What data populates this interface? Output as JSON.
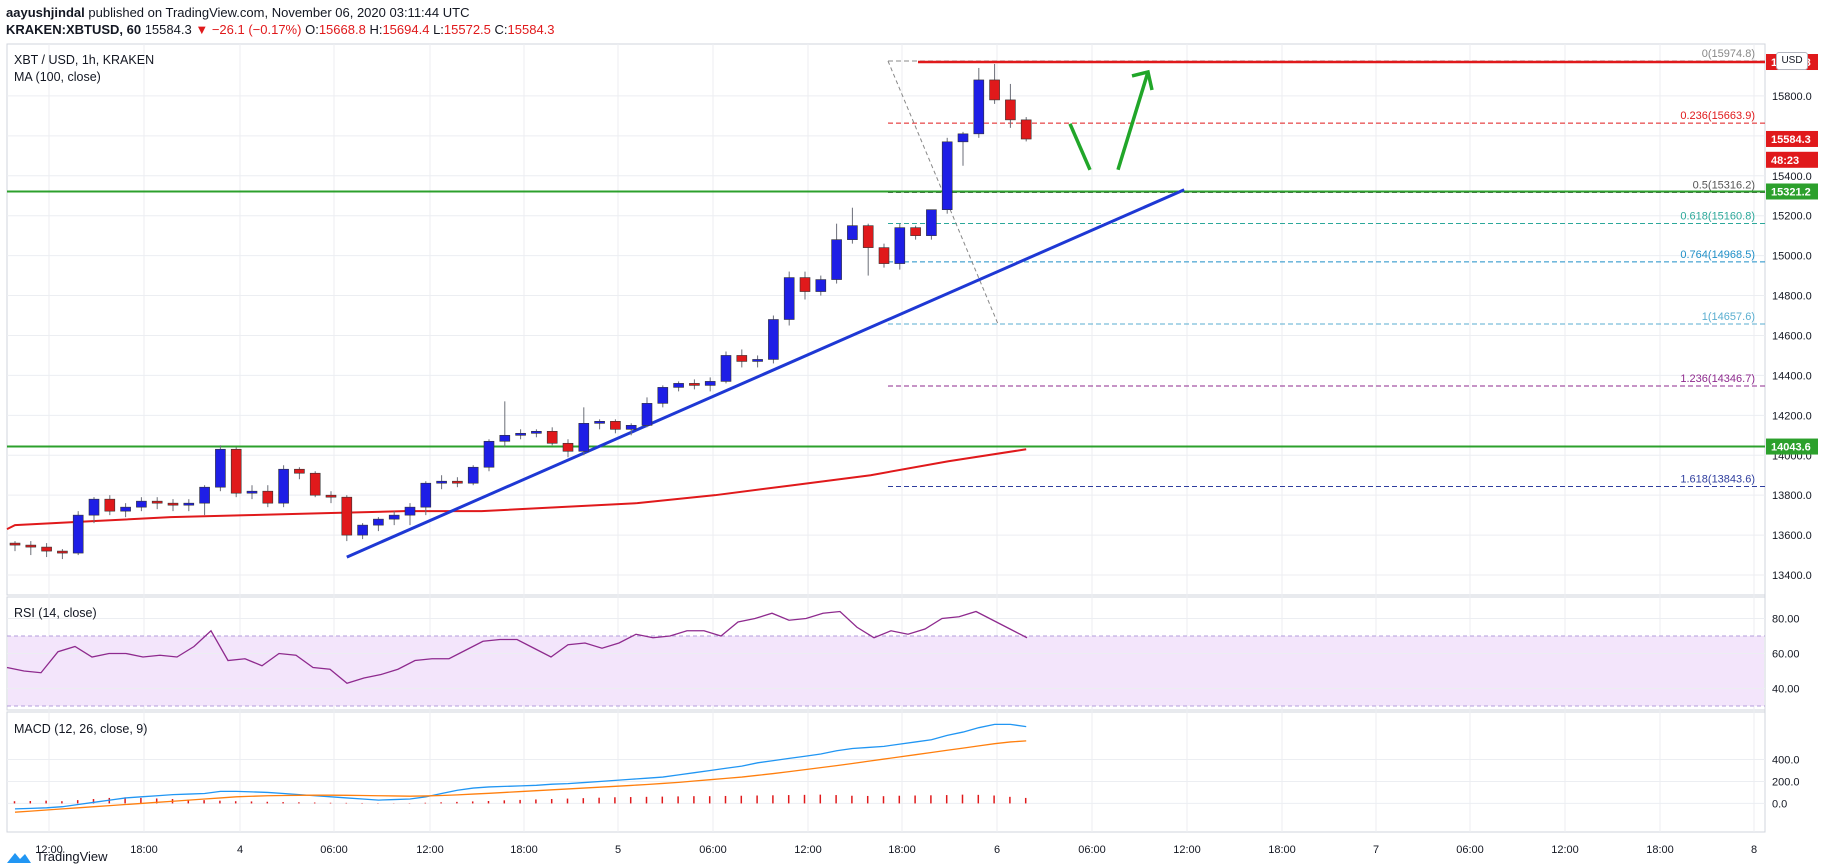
{
  "header": {
    "publisher": "aayushjindal",
    "published_text": "published on TradingView.com, November 06, 2020 03:11:44 UTC",
    "symbol_code": "KRAKEN:XBTUSD, 60",
    "last": "15584.3",
    "change": "−26.1 (−0.17%)",
    "o_label": "O:",
    "o": "15668.8",
    "h_label": "H:",
    "h": "15694.4",
    "l_label": "L:",
    "l": "15572.5",
    "c_label": "C:",
    "c": "15584.3"
  },
  "main_panel": {
    "title": "XBT / USD, 1h, KRAKEN",
    "ma_label": "MA (100, close)",
    "currency_button": "USD"
  },
  "rsi_panel": {
    "label": "RSI (14, close)"
  },
  "macd_panel": {
    "label": "MACD (12, 26, close, 9)"
  },
  "footer": {
    "brand": "TradingView"
  },
  "colors": {
    "bull": "#1e1ee6",
    "bear": "#e0191b",
    "ma": "#e0191b",
    "support": "#2ca02c",
    "resistance": "#e0191b",
    "trend": "#1e38d4",
    "arrow": "#21a629",
    "rsi": "#8e2a8e",
    "macd": "#2196f3",
    "signal": "#ff7f0e",
    "hist": "#e0191b"
  },
  "chart_data": {
    "type": "candlestick",
    "x_tick_labels": [
      "12:00",
      "18:00",
      "4",
      "06:00",
      "12:00",
      "18:00",
      "5",
      "06:00",
      "12:00",
      "18:00",
      "6",
      "06:00",
      "12:00",
      "18:00",
      "7",
      "06:00",
      "12:00",
      "18:00",
      "8"
    ],
    "y_ticks": [
      13400,
      13600,
      13800,
      14000,
      14200,
      14400,
      14600,
      14800,
      15000,
      15200,
      15400,
      15600,
      15800
    ],
    "ylim": [
      13300,
      16060
    ],
    "candles": [
      [
        13560,
        13570,
        13520,
        13550
      ],
      [
        13550,
        13570,
        13500,
        13540
      ],
      [
        13540,
        13560,
        13490,
        13520
      ],
      [
        13520,
        13530,
        13480,
        13510
      ],
      [
        13510,
        13720,
        13500,
        13700
      ],
      [
        13700,
        13790,
        13660,
        13780
      ],
      [
        13780,
        13800,
        13700,
        13720
      ],
      [
        13720,
        13760,
        13690,
        13740
      ],
      [
        13740,
        13790,
        13720,
        13770
      ],
      [
        13770,
        13790,
        13730,
        13760
      ],
      [
        13760,
        13780,
        13720,
        13750
      ],
      [
        13750,
        13780,
        13720,
        13760
      ],
      [
        13760,
        13850,
        13700,
        13840
      ],
      [
        13840,
        14050,
        13820,
        14030
      ],
      [
        14030,
        14040,
        13790,
        13810
      ],
      [
        13810,
        13850,
        13780,
        13820
      ],
      [
        13820,
        13850,
        13740,
        13760
      ],
      [
        13760,
        13950,
        13740,
        13930
      ],
      [
        13930,
        13940,
        13880,
        13910
      ],
      [
        13910,
        13920,
        13790,
        13800
      ],
      [
        13800,
        13820,
        13760,
        13790
      ],
      [
        13790,
        13800,
        13570,
        13600
      ],
      [
        13600,
        13660,
        13580,
        13650
      ],
      [
        13650,
        13690,
        13620,
        13680
      ],
      [
        13680,
        13720,
        13650,
        13700
      ],
      [
        13700,
        13760,
        13650,
        13740
      ],
      [
        13740,
        13870,
        13700,
        13860
      ],
      [
        13860,
        13900,
        13830,
        13870
      ],
      [
        13870,
        13890,
        13840,
        13860
      ],
      [
        13860,
        13950,
        13850,
        13940
      ],
      [
        13940,
        14080,
        13920,
        14070
      ],
      [
        14070,
        14270,
        14040,
        14100
      ],
      [
        14100,
        14130,
        14080,
        14110
      ],
      [
        14110,
        14130,
        14090,
        14120
      ],
      [
        14120,
        14140,
        14050,
        14060
      ],
      [
        14060,
        14080,
        13990,
        14020
      ],
      [
        14020,
        14240,
        14000,
        14160
      ],
      [
        14160,
        14180,
        14130,
        14170
      ],
      [
        14170,
        14180,
        14110,
        14130
      ],
      [
        14130,
        14160,
        14100,
        14150
      ],
      [
        14150,
        14290,
        14140,
        14260
      ],
      [
        14260,
        14350,
        14240,
        14340
      ],
      [
        14340,
        14370,
        14320,
        14360
      ],
      [
        14360,
        14380,
        14330,
        14350
      ],
      [
        14350,
        14390,
        14320,
        14370
      ],
      [
        14370,
        14520,
        14360,
        14500
      ],
      [
        14500,
        14530,
        14440,
        14470
      ],
      [
        14470,
        14500,
        14440,
        14480
      ],
      [
        14480,
        14700,
        14460,
        14680
      ],
      [
        14680,
        14920,
        14650,
        14890
      ],
      [
        14890,
        14920,
        14780,
        14820
      ],
      [
        14820,
        14900,
        14800,
        14880
      ],
      [
        14880,
        15160,
        14860,
        15080
      ],
      [
        15080,
        15240,
        15060,
        15150
      ],
      [
        15150,
        15160,
        14900,
        15040
      ],
      [
        15040,
        15060,
        14940,
        14960
      ],
      [
        14960,
        15160,
        14930,
        15140
      ],
      [
        15140,
        15150,
        15080,
        15100
      ],
      [
        15100,
        15220,
        15080,
        15230
      ],
      [
        15230,
        15590,
        15210,
        15570
      ],
      [
        15570,
        15620,
        15450,
        15610
      ],
      [
        15610,
        15940,
        15590,
        15880
      ],
      [
        15880,
        15960,
        15760,
        15780
      ],
      [
        15780,
        15860,
        15640,
        15680
      ],
      [
        15680,
        15694,
        15572,
        15584
      ]
    ],
    "ma100": [
      13650,
      13670,
      13690,
      13700,
      13710,
      13720,
      13720,
      13740,
      13760,
      13800,
      13850,
      13900,
      13970,
      14030
    ],
    "levels": [
      {
        "ratio": "0",
        "value": 15974.8,
        "color": "#888888"
      },
      {
        "ratio": "0.236",
        "value": 15663.9,
        "color": "#e0191b"
      },
      {
        "ratio": "0.5",
        "value": 15316.2,
        "color": "#555555"
      },
      {
        "ratio": "0.618",
        "value": 15160.8,
        "color": "#2ca89a"
      },
      {
        "ratio": "0.764",
        "value": 14968.5,
        "color": "#1f8fc7"
      },
      {
        "ratio": "1",
        "value": 14657.6,
        "color": "#5aaed0"
      },
      {
        "ratio": "1.236",
        "value": 14346.7,
        "color": "#8e2a8e"
      },
      {
        "ratio": "1.618",
        "value": 13843.6,
        "color": "#2f3e9e"
      }
    ],
    "resistance_level": 15969.8,
    "support_levels": [
      15321.2,
      14043.6
    ],
    "price_badges": [
      {
        "value": "15969.8",
        "y_value": 15969.8,
        "color": "#e0191b"
      },
      {
        "value": "15584.3",
        "y_value": 15584.3,
        "color": "#e0191b"
      },
      {
        "value": "48:23",
        "y_value": 15480,
        "color": "#e0191b"
      },
      {
        "value": "15321.2",
        "y_value": 15321.2,
        "color": "#2ca02c"
      },
      {
        "value": "14043.6",
        "y_value": 14043.6,
        "color": "#2ca02c"
      }
    ],
    "trendline": {
      "from": [
        21,
        13490
      ],
      "to": [
        74,
        15330
      ]
    },
    "rsi": {
      "yticks": [
        "40.00",
        "60.00",
        "80.00"
      ],
      "values": [
        52,
        50,
        49,
        61,
        64,
        58,
        60,
        60,
        58,
        59,
        58,
        64,
        73,
        56,
        57,
        53,
        60,
        59,
        52,
        51,
        43,
        46,
        48,
        51,
        56,
        57,
        57,
        62,
        67,
        68,
        68,
        63,
        58,
        65,
        66,
        63,
        66,
        71,
        69,
        70,
        73,
        73,
        70,
        78,
        80,
        83,
        79,
        80,
        83,
        84,
        75,
        69,
        73,
        71,
        74,
        80,
        81,
        84,
        79,
        74,
        69
      ],
      "upper": 70,
      "lower": 30
    },
    "macd": {
      "yticks": [
        "0.0",
        "200.0",
        "400.0"
      ],
      "macd_line": [
        -50,
        -45,
        -40,
        -30,
        -10,
        10,
        30,
        50,
        60,
        70,
        80,
        85,
        90,
        110,
        110,
        105,
        100,
        90,
        80,
        70,
        60,
        50,
        40,
        30,
        35,
        40,
        60,
        90,
        120,
        140,
        150,
        155,
        160,
        165,
        175,
        180,
        190,
        200,
        210,
        220,
        230,
        240,
        260,
        280,
        300,
        320,
        340,
        370,
        390,
        410,
        430,
        450,
        480,
        500,
        510,
        520,
        540,
        560,
        580,
        620,
        650,
        690,
        720,
        720,
        700
      ],
      "signal_line": [
        -80,
        -70,
        -60,
        -50,
        -40,
        -30,
        -20,
        -10,
        0,
        10,
        20,
        30,
        40,
        50,
        60,
        65,
        70,
        72,
        74,
        75,
        75,
        74,
        72,
        70,
        68,
        66,
        68,
        72,
        78,
        85,
        92,
        100,
        108,
        116,
        124,
        132,
        140,
        148,
        156,
        164,
        172,
        182,
        192,
        204,
        216,
        228,
        240,
        256,
        272,
        290,
        308,
        326,
        344,
        364,
        384,
        404,
        424,
        444,
        464,
        484,
        504,
        524,
        544,
        560,
        570
      ],
      "hist": [
        20,
        22,
        25,
        20,
        30,
        40,
        50,
        55,
        50,
        45,
        40,
        35,
        30,
        25,
        20,
        18,
        15,
        12,
        10,
        8,
        6,
        5,
        4,
        3,
        2,
        3,
        6,
        10,
        14,
        18,
        22,
        28,
        32,
        36,
        40,
        44,
        48,
        52,
        56,
        58,
        60,
        62,
        64,
        66,
        66,
        68,
        70,
        72,
        74,
        76,
        78,
        80,
        76,
        70,
        68,
        66,
        70,
        72,
        74,
        76,
        80,
        78,
        72,
        60,
        50
      ]
    }
  }
}
